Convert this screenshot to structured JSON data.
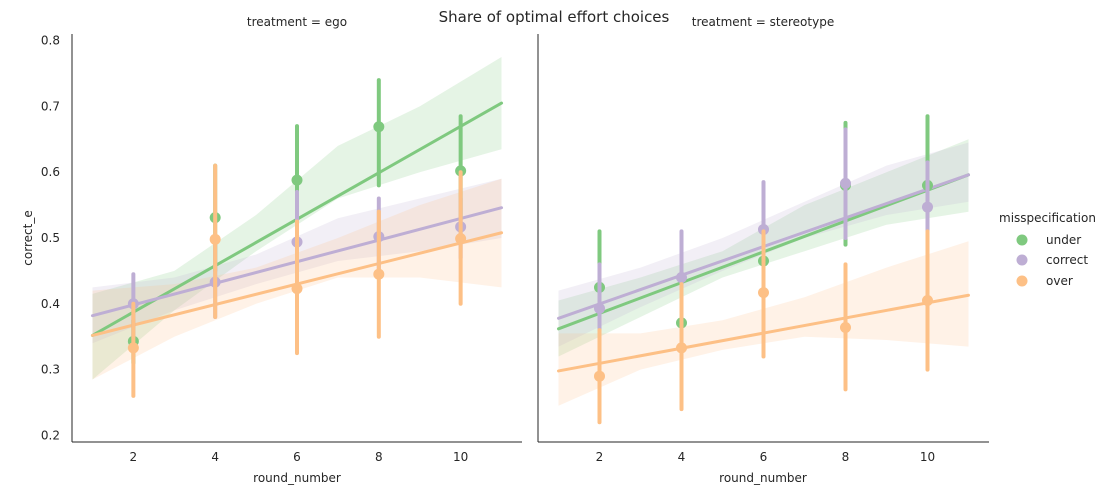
{
  "figure": {
    "suptitle": "Share of optimal effort choices"
  },
  "legend": {
    "title": "misspecification",
    "entries": [
      {
        "label": "under",
        "color": "#7fc97f"
      },
      {
        "label": "correct",
        "color": "#beaed4"
      },
      {
        "label": "over",
        "color": "#fdc086"
      }
    ],
    "placement": "right"
  },
  "chart_data": [
    {
      "type": "scatter",
      "title": "treatment = ego",
      "xlabel": "round_number",
      "ylabel": "correct_e",
      "xlim": [
        0.5,
        11.5
      ],
      "ylim": [
        0.19,
        0.81
      ],
      "xticks": [
        2,
        4,
        6,
        8,
        10
      ],
      "yticks": [
        0.2,
        0.3,
        0.4,
        0.5,
        0.6,
        0.7,
        0.8
      ],
      "x": [
        2,
        4,
        6,
        8,
        10
      ],
      "grid": false,
      "series": [
        {
          "name": "under",
          "color": "#7fc97f",
          "values": [
            0.343,
            0.531,
            0.588,
            0.669,
            0.602
          ],
          "ci": [
            [
              0.31,
              0.375
            ],
            [
              0.45,
              0.61
            ],
            [
              0.51,
              0.67
            ],
            [
              0.58,
              0.74
            ],
            [
              0.53,
              0.685
            ]
          ],
          "fit": {
            "x": [
              1,
              11
            ],
            "y": [
              0.352,
              0.705
            ]
          },
          "fit_band": {
            "x": [
              1,
              3,
              5,
              7,
              9,
              11
            ],
            "lo": [
              0.285,
              0.39,
              0.48,
              0.56,
              0.6,
              0.635
            ],
            "hi": [
              0.415,
              0.45,
              0.535,
              0.64,
              0.7,
              0.775
            ]
          }
        },
        {
          "name": "correct",
          "color": "#beaed4",
          "values": [
            0.4,
            0.433,
            0.494,
            0.502,
            0.517
          ],
          "ci": [
            [
              0.35,
              0.445
            ],
            [
              0.38,
              0.49
            ],
            [
              0.42,
              0.57
            ],
            [
              0.44,
              0.56
            ],
            [
              0.47,
              0.56
            ]
          ],
          "fit": {
            "x": [
              1,
              11
            ],
            "y": [
              0.382,
              0.546
            ]
          },
          "fit_band": {
            "x": [
              1,
              3,
              5,
              7,
              9,
              11
            ],
            "lo": [
              0.34,
              0.39,
              0.43,
              0.465,
              0.48,
              0.5
            ],
            "hi": [
              0.425,
              0.44,
              0.475,
              0.53,
              0.56,
              0.59
            ]
          }
        },
        {
          "name": "over",
          "color": "#fdc086",
          "values": [
            0.333,
            0.498,
            0.423,
            0.445,
            0.499
          ],
          "ci": [
            [
              0.26,
              0.4
            ],
            [
              0.38,
              0.61
            ],
            [
              0.325,
              0.525
            ],
            [
              0.35,
              0.54
            ],
            [
              0.4,
              0.6
            ]
          ],
          "fit": {
            "x": [
              1,
              11
            ],
            "y": [
              0.352,
              0.508
            ]
          },
          "fit_band": {
            "x": [
              1,
              3,
              5,
              7,
              9,
              11
            ],
            "lo": [
              0.285,
              0.35,
              0.4,
              0.44,
              0.44,
              0.425
            ],
            "hi": [
              0.42,
              0.43,
              0.455,
              0.5,
              0.55,
              0.59
            ]
          }
        }
      ]
    },
    {
      "type": "scatter",
      "title": "treatment = stereotype",
      "xlabel": "round_number",
      "ylabel": "",
      "xlim": [
        0.5,
        11.5
      ],
      "ylim": [
        0.19,
        0.81
      ],
      "xticks": [
        2,
        4,
        6,
        8,
        10
      ],
      "x": [
        2,
        4,
        6,
        8,
        10
      ],
      "grid": false,
      "series": [
        {
          "name": "under",
          "color": "#7fc97f",
          "values": [
            0.425,
            0.371,
            0.465,
            0.58,
            0.58
          ],
          "ci": [
            [
              0.34,
              0.51
            ],
            [
              0.3,
              0.44
            ],
            [
              0.39,
              0.54
            ],
            [
              0.49,
              0.675
            ],
            [
              0.48,
              0.685
            ]
          ],
          "fit": {
            "x": [
              1,
              11
            ],
            "y": [
              0.362,
              0.596
            ]
          },
          "fit_band": {
            "x": [
              1,
              3,
              5,
              7,
              9,
              11
            ],
            "lo": [
              0.32,
              0.38,
              0.44,
              0.48,
              0.52,
              0.54
            ],
            "hi": [
              0.405,
              0.44,
              0.48,
              0.55,
              0.6,
              0.65
            ]
          }
        },
        {
          "name": "correct",
          "color": "#beaed4",
          "values": [
            0.393,
            0.44,
            0.513,
            0.583,
            0.547
          ],
          "ci": [
            [
              0.32,
              0.46
            ],
            [
              0.37,
              0.51
            ],
            [
              0.44,
              0.585
            ],
            [
              0.5,
              0.665
            ],
            [
              0.47,
              0.615
            ]
          ],
          "fit": {
            "x": [
              1,
              11
            ],
            "y": [
              0.378,
              0.596
            ]
          },
          "fit_band": {
            "x": [
              1,
              3,
              5,
              7,
              9,
              11
            ],
            "lo": [
              0.335,
              0.395,
              0.45,
              0.5,
              0.535,
              0.555
            ],
            "hi": [
              0.42,
              0.455,
              0.5,
              0.555,
              0.61,
              0.645
            ]
          }
        },
        {
          "name": "over",
          "color": "#fdc086",
          "values": [
            0.29,
            0.333,
            0.417,
            0.364,
            0.405
          ],
          "ci": [
            [
              0.22,
              0.36
            ],
            [
              0.24,
              0.43
            ],
            [
              0.32,
              0.51
            ],
            [
              0.27,
              0.46
            ],
            [
              0.3,
              0.51
            ]
          ],
          "fit": {
            "x": [
              1,
              11
            ],
            "y": [
              0.298,
              0.413
            ]
          },
          "fit_band": {
            "x": [
              1,
              3,
              5,
              7,
              9,
              11
            ],
            "lo": [
              0.245,
              0.3,
              0.33,
              0.35,
              0.345,
              0.335
            ],
            "hi": [
              0.355,
              0.355,
              0.375,
              0.41,
              0.455,
              0.495
            ]
          }
        }
      ]
    }
  ]
}
